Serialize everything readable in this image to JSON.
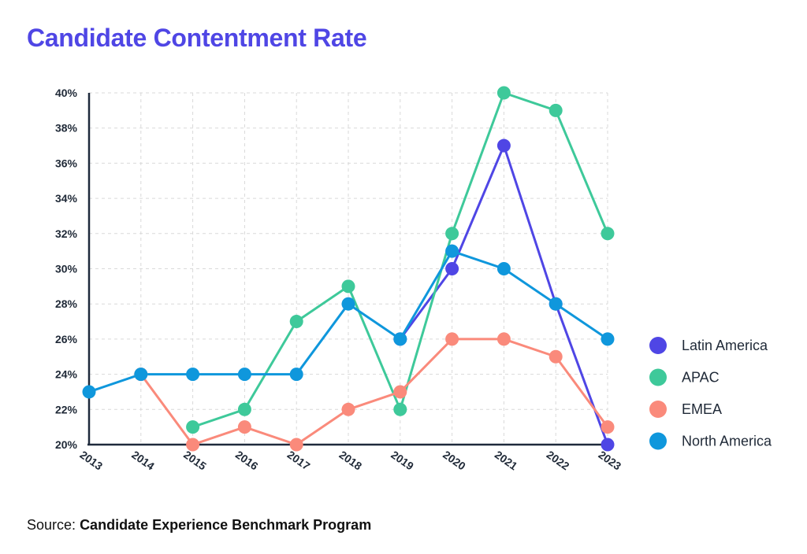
{
  "title": "Candidate Contentment Rate",
  "source": {
    "prefix": "Source:",
    "name": "Candidate Experience Benchmark Program"
  },
  "chart_data": {
    "type": "line",
    "x": [
      "2013",
      "2014",
      "2015",
      "2016",
      "2017",
      "2018",
      "2019",
      "2020",
      "2021",
      "2022",
      "2023"
    ],
    "ylim": [
      20,
      40
    ],
    "yticks": [
      "20%",
      "22%",
      "24%",
      "26%",
      "28%",
      "30%",
      "32%",
      "34%",
      "36%",
      "38%",
      "40%"
    ],
    "grid": true,
    "legend_position": "right",
    "series": [
      {
        "name": "Latin America",
        "color": "#4f46e5",
        "values": [
          null,
          null,
          null,
          null,
          null,
          null,
          26,
          30,
          37,
          28,
          20
        ]
      },
      {
        "name": "APAC",
        "color": "#3ec99a",
        "values": [
          null,
          null,
          21,
          22,
          27,
          29,
          22,
          32,
          40,
          39,
          32
        ]
      },
      {
        "name": "EMEA",
        "color": "#fa8a7b",
        "values": [
          null,
          24,
          20,
          21,
          20,
          22,
          23,
          26,
          26,
          25,
          21
        ]
      },
      {
        "name": "North America",
        "color": "#0f97dc",
        "values": [
          23,
          24,
          24,
          24,
          24,
          28,
          26,
          31,
          30,
          28,
          26
        ]
      }
    ]
  }
}
